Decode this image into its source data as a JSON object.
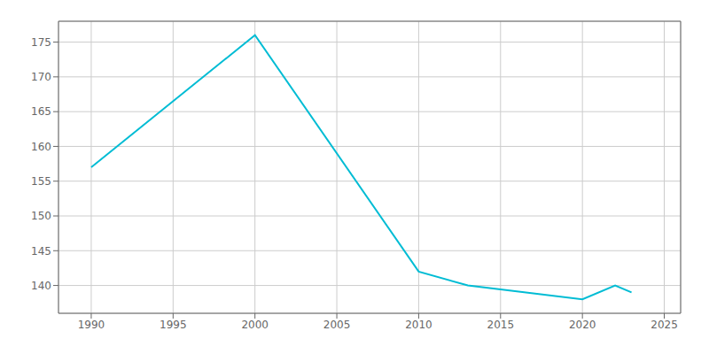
{
  "chart_data": {
    "type": "line",
    "x": [
      1990,
      2000,
      2010,
      2013,
      2020,
      2022,
      2023
    ],
    "values": [
      157,
      176,
      142,
      140,
      138,
      140,
      139
    ],
    "color": "#00bcd4",
    "xlim": [
      1988,
      2026
    ],
    "ylim": [
      136,
      178
    ],
    "xticks": [
      1990,
      1995,
      2000,
      2005,
      2010,
      2015,
      2020,
      2025
    ],
    "yticks": [
      140,
      145,
      150,
      155,
      160,
      165,
      170,
      175
    ],
    "grid": true
  }
}
